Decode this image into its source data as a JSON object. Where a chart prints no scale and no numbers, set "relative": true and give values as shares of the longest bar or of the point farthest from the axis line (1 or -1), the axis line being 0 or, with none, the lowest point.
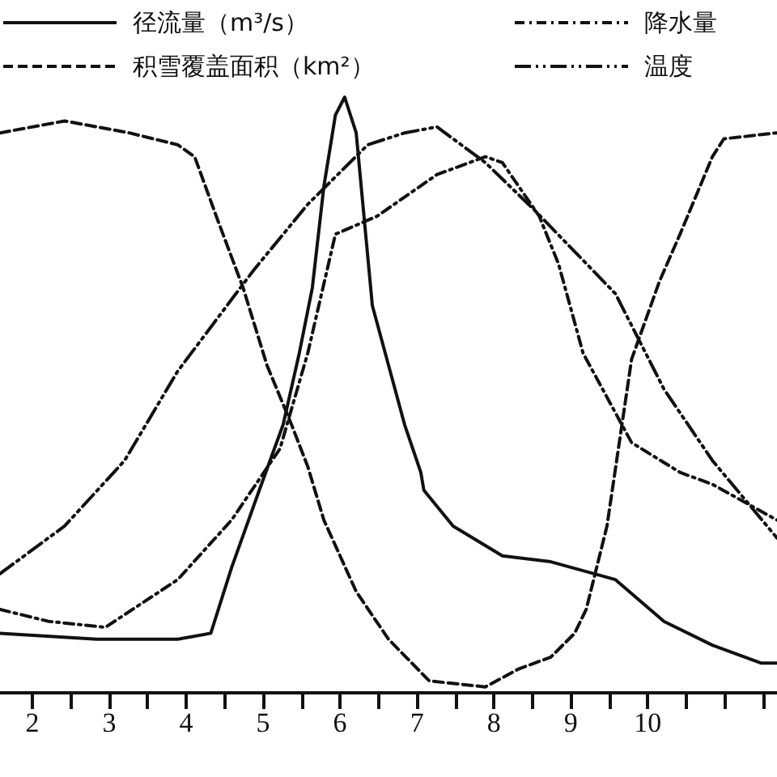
{
  "chart_data": {
    "type": "line",
    "relative": true,
    "marker": "none",
    "legend": "top",
    "grid": false,
    "xlim": [
      1.58,
      11.68
    ],
    "xticks": [
      2,
      {
        "value": 2.5,
        "label": null
      },
      3,
      {
        "value": 3.5,
        "label": null
      },
      4,
      {
        "value": 4.5,
        "label": null
      },
      5,
      {
        "value": 5.5,
        "label": null
      },
      6,
      {
        "value": 6.5,
        "label": null
      },
      7,
      {
        "value": 7.5,
        "label": null
      },
      8,
      {
        "value": 8.5,
        "label": null
      },
      9,
      {
        "value": 9.5,
        "label": null
      },
      10,
      {
        "value": 10.5,
        "label": null
      },
      {
        "value": 11,
        "label": null
      },
      {
        "value": 11.5,
        "label": null
      }
    ],
    "series": [
      {
        "name": "径流量（m³/s）",
        "color": "#111111",
        "line_style": "solid",
        "x": [
          1.58,
          2.84,
          3.89,
          4.32,
          4.59,
          4.95,
          5.26,
          5.47,
          5.64,
          5.79,
          5.94,
          6.06,
          6.21,
          6.42,
          6.84,
          7.05,
          7.09,
          7.47,
          8.11,
          8.74,
          9.58,
          10.21,
          10.84,
          11.47,
          11.68
        ],
        "values": [
          0.1,
          0.09,
          0.09,
          0.1,
          0.21,
          0.34,
          0.45,
          0.57,
          0.68,
          0.85,
          0.97,
          1,
          0.94,
          0.65,
          0.45,
          0.37,
          0.34,
          0.28,
          0.23,
          0.22,
          0.19,
          0.12,
          0.08,
          0.05,
          0.05
        ]
      },
      {
        "name": "积雪覆盖面积（km²）",
        "color": "#111111",
        "line_style": "dashed",
        "x": [
          1.58,
          2.42,
          3.26,
          3.89,
          4.11,
          4.42,
          4.74,
          5.05,
          5.37,
          5.58,
          5.79,
          6.21,
          6.63,
          7.16,
          7.89,
          8.32,
          8.74,
          9.05,
          9.2,
          9.47,
          9.79,
          10.15,
          10.42,
          10.84,
          10.99,
          11.68
        ],
        "values": [
          0.94,
          0.96,
          0.94,
          0.92,
          0.9,
          0.79,
          0.68,
          0.55,
          0.45,
          0.38,
          0.29,
          0.17,
          0.09,
          0.02,
          0.01,
          0.04,
          0.06,
          0.1,
          0.14,
          0.28,
          0.56,
          0.69,
          0.77,
          0.9,
          0.93,
          0.94
        ]
      },
      {
        "name": "降水量",
        "color": "#111111",
        "line_style": "dashdot",
        "x": [
          1.58,
          2.21,
          2.95,
          3.89,
          4.59,
          5.22,
          5.58,
          5.94,
          6.48,
          7.26,
          7.89,
          8.11,
          8.59,
          8.84,
          9.16,
          9.79,
          10.42,
          10.84,
          11.68
        ],
        "values": [
          0.14,
          0.12,
          0.11,
          0.19,
          0.29,
          0.41,
          0.57,
          0.77,
          0.8,
          0.87,
          0.9,
          0.89,
          0.8,
          0.72,
          0.57,
          0.42,
          0.37,
          0.35,
          0.29
        ]
      },
      {
        "name": "温度",
        "color": "#111111",
        "line_style": "dashdotdot",
        "x": [
          1.58,
          2.42,
          3.2,
          3.89,
          4.53,
          4.88,
          5.58,
          6.36,
          6.84,
          7.26,
          7.89,
          8.53,
          9.58,
          10.21,
          10.84,
          11.68
        ],
        "values": [
          0.2,
          0.28,
          0.39,
          0.54,
          0.65,
          0.71,
          0.82,
          0.92,
          0.94,
          0.95,
          0.89,
          0.81,
          0.67,
          0.51,
          0.39,
          0.26
        ]
      }
    ]
  }
}
